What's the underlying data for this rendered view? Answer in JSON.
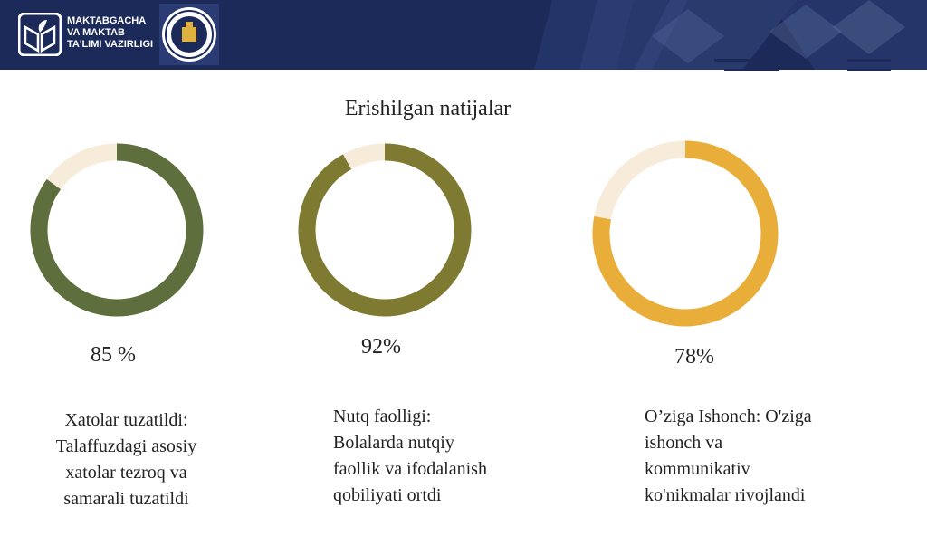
{
  "header": {
    "ministry_lines": [
      "MAKTABGACHA",
      "VA MAKTAB",
      "TA'LIMI VAZIRLIGI"
    ]
  },
  "title": "Erishilgan natijalar",
  "colors": {
    "header_bg": "#1c2a5a",
    "remainder": "#f7ecda",
    "accent_line": "#1c2a5a"
  },
  "chart_data": [
    {
      "type": "pie",
      "subtype": "donut",
      "label": "85 %",
      "value": 85,
      "remainder": 15,
      "color": "#5e6e3c",
      "description_lines": [
        "Xatolar tuzatildi:",
        "Talaffuzdagi asosiy",
        "xatolar tezroq va",
        "samarali tuzatildi"
      ]
    },
    {
      "type": "pie",
      "subtype": "donut",
      "label": "92%",
      "value": 92,
      "remainder": 8,
      "color": "#7f7a32",
      "description_lines": [
        "Nutq faolligi:",
        "Bolalarda nutqiy",
        "faollik va ifodalanish",
        "qobiliyati ortdi"
      ]
    },
    {
      "type": "pie",
      "subtype": "donut",
      "label": "78%",
      "value": 78,
      "remainder": 22,
      "color": "#e9ae3a",
      "description_lines": [
        "O’ziga Ishonch: O'ziga",
        "ishonch va",
        "kommunikativ",
        "ko'nikmalar rivojlandi"
      ]
    }
  ]
}
